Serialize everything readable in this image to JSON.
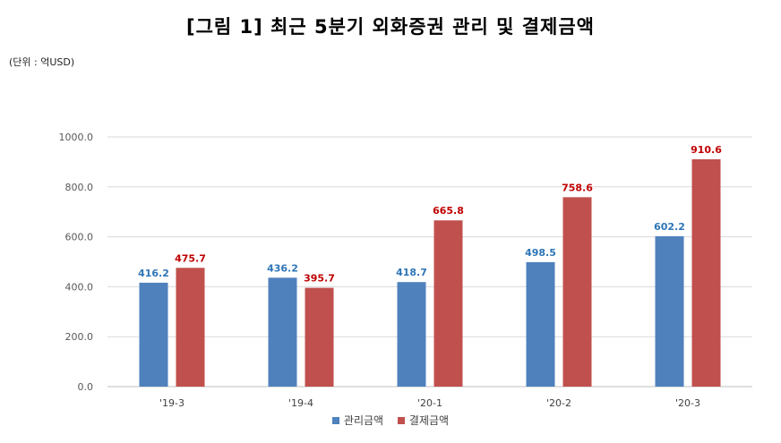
{
  "title": "[그림 1] 최근 5분기 외화증권 관리 및 결제금액",
  "unit_label": "(단위 : 억USD)",
  "colors": {
    "series_1": "#4F81BD",
    "series_2": "#C0504D",
    "grid": "#D9D9D9",
    "axis": "#BFBFBF"
  },
  "chart_data": {
    "type": "bar",
    "categories": [
      "'19-3",
      "'19-4",
      "'20-1",
      "'20-2",
      "'20-3"
    ],
    "series": [
      {
        "name": "관리금액",
        "values": [
          416.2,
          436.2,
          418.7,
          498.5,
          602.2
        ]
      },
      {
        "name": "결제금액",
        "values": [
          475.7,
          395.7,
          665.8,
          758.6,
          910.6
        ]
      }
    ],
    "value_labels": [
      [
        "416.2",
        "436.2",
        "418.7",
        "498.5",
        "602.2"
      ],
      [
        "475.7",
        "395.7",
        "665.8",
        "758.6",
        "910.6"
      ]
    ],
    "y_ticks": [
      "0.0",
      "200.0",
      "400.0",
      "600.0",
      "800.0",
      "1000.0"
    ],
    "ylim": [
      0,
      1000
    ],
    "grid": true,
    "legend": "bottom"
  }
}
